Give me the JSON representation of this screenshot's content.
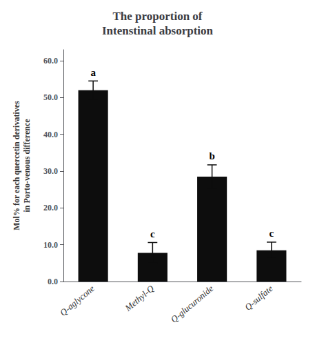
{
  "chart_data": {
    "type": "bar",
    "title": "The proportion of\nIntenstinal absorption",
    "categories": [
      "Q-aglycone",
      "Methyl-Q",
      "Q-glucuronide",
      "Q-sulfate"
    ],
    "values": [
      52.0,
      7.8,
      28.5,
      8.5
    ],
    "errors": [
      2.5,
      2.8,
      3.2,
      2.2
    ],
    "annotations": [
      "a",
      "c",
      "b",
      "c"
    ],
    "color": "#0d0d0d",
    "ylabel": "Mol% for each quercetin derivatives\nin Porto-venous difference",
    "ylim": [
      0,
      63.0
    ],
    "yticks": [
      {
        "value": 0.0,
        "label": "0.0"
      },
      {
        "value": 10.0,
        "label": "10.0"
      },
      {
        "value": 20.0,
        "label": "20.0"
      },
      {
        "value": 30.0,
        "label": "30.0"
      },
      {
        "value": 40.0,
        "label": "40.0"
      },
      {
        "value": 50.0,
        "label": "50.0"
      },
      {
        "value": 60.0,
        "label": "60.0"
      }
    ],
    "grid": false
  }
}
